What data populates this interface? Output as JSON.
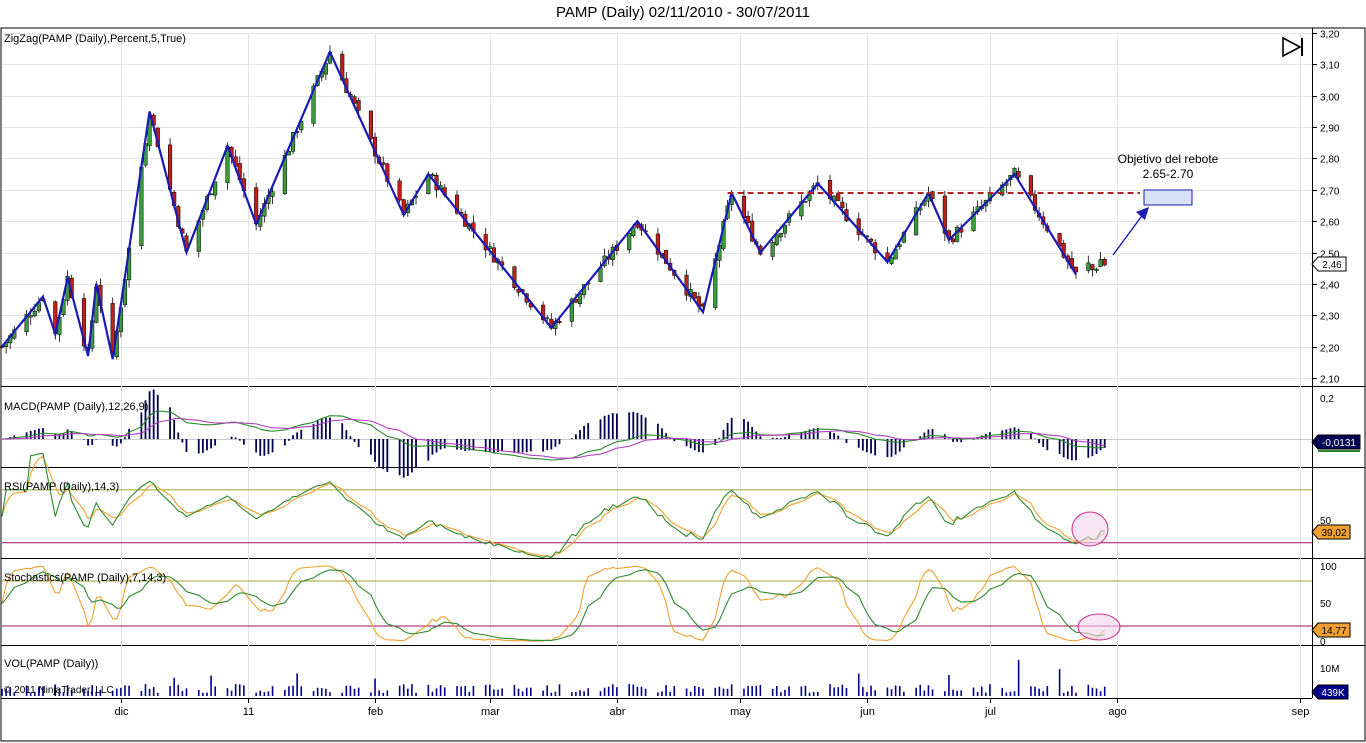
{
  "title": "PAMP (Daily)  02/11/2010 - 30/07/2011",
  "colors": {
    "price_up": "#3c9a3c",
    "price_down": "#c0201c",
    "zigzag": "#1a1ab4",
    "resistance": "#b22222",
    "macd": "#2a8a2a",
    "macd_signal": "#b040c0",
    "macd_hist": "#000050",
    "rsi": "#2e8b2e",
    "rsi_signal": "#f0a030",
    "overbought": "#a0a030",
    "oversold": "#a0106a",
    "volume": "#00008b",
    "grid": "#e4e4e4"
  },
  "panels": {
    "price": {
      "label": "ZigZag(PAMP (Daily),Percent,5,True)",
      "last_value": "2,46",
      "ticks": [
        "3,20",
        "3,10",
        "3,00",
        "2,90",
        "2,80",
        "2,70",
        "2,60",
        "2,50",
        "2,40",
        "2,30",
        "2,20",
        "2,10"
      ]
    },
    "macd": {
      "label": "MACD(PAMP (Daily),12,26,9)",
      "last_value": "-0,0131",
      "ticks": [
        "0,2"
      ]
    },
    "rsi": {
      "label": "RSI(PAMP (Daily),14,3)",
      "last_value": "39,02",
      "ticks": [
        "50"
      ]
    },
    "stoch": {
      "label": "Stochastics(PAMP (Daily),7,14,3)",
      "last_value": "14,77",
      "ticks": [
        "100",
        "50",
        "0"
      ]
    },
    "volume": {
      "label": "VOL(PAMP (Daily))",
      "last_value": "439K",
      "ticks": [
        "10M"
      ],
      "copyright": "© 2011 NinjaTrader, LLC"
    }
  },
  "annotation": {
    "line1": "Objetivo del rebote",
    "line2": "2.65-2.70"
  },
  "x_axis": [
    "dic",
    "11",
    "feb",
    "mar",
    "abr",
    "may",
    "jun",
    "jul",
    "ago",
    "sep"
  ],
  "chart_data": {
    "type": "line",
    "title": "PAMP (Daily)  02/11/2010 - 30/07/2011",
    "ylim": [
      2.07,
      3.2
    ],
    "zigzag": [
      {
        "x": "2010-11-02",
        "y": 2.2
      },
      {
        "x": "2010-11-12",
        "y": 2.36
      },
      {
        "x": "2010-11-15",
        "y": 2.24
      },
      {
        "x": "2010-11-18",
        "y": 2.42
      },
      {
        "x": "2010-11-23",
        "y": 2.17
      },
      {
        "x": "2010-11-25",
        "y": 2.4
      },
      {
        "x": "2010-11-29",
        "y": 2.16
      },
      {
        "x": "2010-12-08",
        "y": 2.95
      },
      {
        "x": "2010-12-17",
        "y": 2.5
      },
      {
        "x": "2010-12-27",
        "y": 2.84
      },
      {
        "x": "2011-01-03",
        "y": 2.59
      },
      {
        "x": "2011-01-21",
        "y": 3.14
      },
      {
        "x": "2011-02-08",
        "y": 2.62
      },
      {
        "x": "2011-02-14",
        "y": 2.75
      },
      {
        "x": "2011-03-16",
        "y": 2.26
      },
      {
        "x": "2011-04-06",
        "y": 2.6
      },
      {
        "x": "2011-04-22",
        "y": 2.31
      },
      {
        "x": "2011-04-29",
        "y": 2.69
      },
      {
        "x": "2011-05-06",
        "y": 2.5
      },
      {
        "x": "2011-05-20",
        "y": 2.72
      },
      {
        "x": "2011-06-06",
        "y": 2.47
      },
      {
        "x": "2011-06-16",
        "y": 2.69
      },
      {
        "x": "2011-06-21",
        "y": 2.54
      },
      {
        "x": "2011-07-07",
        "y": 2.75
      },
      {
        "x": "2011-07-22",
        "y": 2.43
      }
    ],
    "resistance_level": 2.69,
    "target_range": [
      2.65,
      2.7
    ],
    "last_close": 2.46,
    "rsi_last": 39.02,
    "stoch_last": 14.77,
    "macd_last": -0.0131,
    "volume_last": "439K",
    "rsi_levels": [
      70,
      30
    ],
    "stoch_levels": [
      80,
      20
    ]
  }
}
